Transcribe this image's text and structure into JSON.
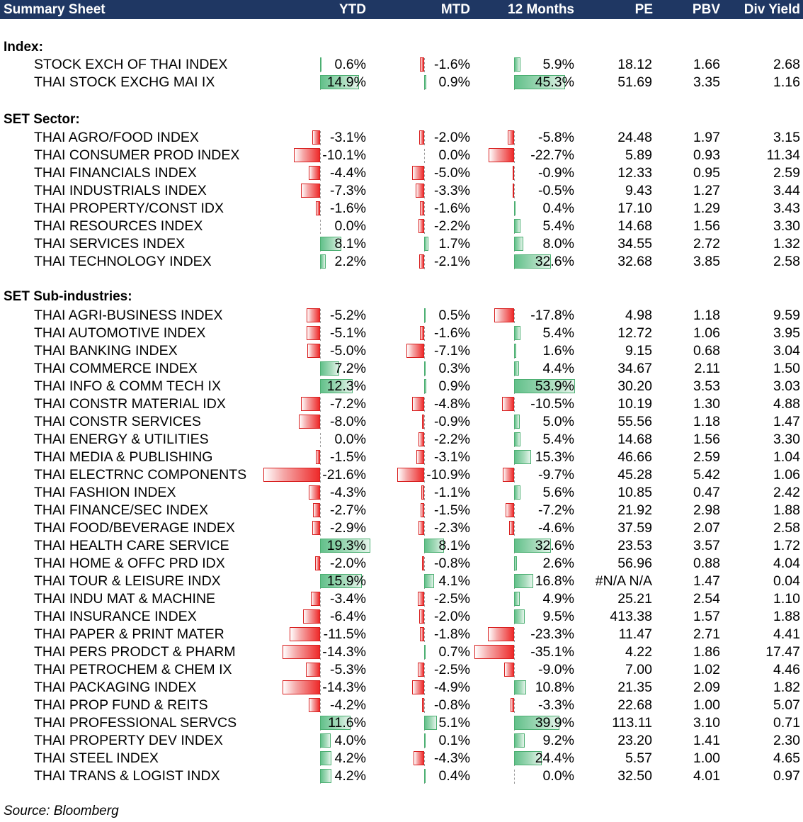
{
  "header": {
    "title": "Summary Sheet",
    "columns": {
      "ytd": "YTD",
      "mtd": "MTD",
      "m12": "12 Months",
      "pe": "PE",
      "pbv": "PBV",
      "dy": "Div Yield"
    }
  },
  "sections": [
    {
      "label": "Index:",
      "rows": [
        {
          "name": "STOCK EXCH OF THAI INDEX",
          "ytd": 0.6,
          "mtd": -1.6,
          "m12": 5.9,
          "pe": "18.12",
          "pbv": "1.66",
          "dy": "2.68"
        },
        {
          "name": "THAI STOCK EXCHG MAI IX",
          "ytd": 14.9,
          "mtd": 0.9,
          "m12": 45.3,
          "pe": "51.69",
          "pbv": "3.35",
          "dy": "1.16"
        }
      ]
    },
    {
      "label": "SET Sector:",
      "rows": [
        {
          "name": "THAI AGRO/FOOD INDEX",
          "ytd": -3.1,
          "mtd": -2.0,
          "m12": -5.8,
          "pe": "24.48",
          "pbv": "1.97",
          "dy": "3.15"
        },
        {
          "name": "THAI CONSUMER PROD INDEX",
          "ytd": -10.1,
          "mtd": 0.0,
          "m12": -22.7,
          "pe": "5.89",
          "pbv": "0.93",
          "dy": "11.34"
        },
        {
          "name": "THAI FINANCIALS INDEX",
          "ytd": -4.4,
          "mtd": -5.0,
          "m12": -0.9,
          "pe": "12.33",
          "pbv": "0.95",
          "dy": "2.59"
        },
        {
          "name": "THAI INDUSTRIALS INDEX",
          "ytd": -7.3,
          "mtd": -3.3,
          "m12": -0.5,
          "pe": "9.43",
          "pbv": "1.27",
          "dy": "3.44"
        },
        {
          "name": "THAI PROPERTY/CONST IDX",
          "ytd": -1.6,
          "mtd": -1.6,
          "m12": 0.4,
          "pe": "17.10",
          "pbv": "1.29",
          "dy": "3.43"
        },
        {
          "name": "THAI RESOURCES INDEX",
          "ytd": 0.0,
          "mtd": -2.2,
          "m12": 5.4,
          "pe": "14.68",
          "pbv": "1.56",
          "dy": "3.30"
        },
        {
          "name": "THAI SERVICES INDEX",
          "ytd": 8.1,
          "mtd": 1.7,
          "m12": 8.0,
          "pe": "34.55",
          "pbv": "2.72",
          "dy": "1.32"
        },
        {
          "name": "THAI TECHNOLOGY INDEX",
          "ytd": 2.2,
          "mtd": -2.1,
          "m12": 32.6,
          "pe": "32.68",
          "pbv": "3.85",
          "dy": "2.58"
        }
      ]
    },
    {
      "label": "SET Sub-industries:",
      "rows": [
        {
          "name": "THAI AGRI-BUSINESS INDEX",
          "ytd": -5.2,
          "mtd": 0.5,
          "m12": -17.8,
          "pe": "4.98",
          "pbv": "1.18",
          "dy": "9.59"
        },
        {
          "name": "THAI AUTOMOTIVE INDEX",
          "ytd": -5.1,
          "mtd": -1.6,
          "m12": 5.4,
          "pe": "12.72",
          "pbv": "1.06",
          "dy": "3.95"
        },
        {
          "name": "THAI BANKING INDEX",
          "ytd": -5.0,
          "mtd": -7.1,
          "m12": 1.6,
          "pe": "9.15",
          "pbv": "0.68",
          "dy": "3.04"
        },
        {
          "name": "THAI COMMERCE INDEX",
          "ytd": 7.2,
          "mtd": 0.3,
          "m12": 4.4,
          "pe": "34.67",
          "pbv": "2.11",
          "dy": "1.50"
        },
        {
          "name": "THAI INFO & COMM TECH IX",
          "ytd": 12.3,
          "mtd": 0.9,
          "m12": 53.9,
          "pe": "30.20",
          "pbv": "3.53",
          "dy": "3.03"
        },
        {
          "name": "THAI CONSTR MATERIAL IDX",
          "ytd": -7.2,
          "mtd": -4.8,
          "m12": -10.5,
          "pe": "10.19",
          "pbv": "1.30",
          "dy": "4.88"
        },
        {
          "name": "THAI CONSTR SERVICES",
          "ytd": -8.0,
          "mtd": -0.9,
          "m12": 5.0,
          "pe": "55.56",
          "pbv": "1.18",
          "dy": "1.47"
        },
        {
          "name": "THAI ENERGY & UTILITIES",
          "ytd": 0.0,
          "mtd": -2.2,
          "m12": 5.4,
          "pe": "14.68",
          "pbv": "1.56",
          "dy": "3.30"
        },
        {
          "name": "THAI MEDIA & PUBLISHING",
          "ytd": -1.5,
          "mtd": -3.1,
          "m12": 15.3,
          "pe": "46.66",
          "pbv": "2.59",
          "dy": "1.04"
        },
        {
          "name": "THAI ELECTRNC COMPONENTS",
          "ytd": -21.6,
          "mtd": -10.9,
          "m12": -9.7,
          "pe": "45.28",
          "pbv": "5.42",
          "dy": "1.06"
        },
        {
          "name": "THAI FASHION INDEX",
          "ytd": -4.3,
          "mtd": -1.1,
          "m12": 5.6,
          "pe": "10.85",
          "pbv": "0.47",
          "dy": "2.42"
        },
        {
          "name": "THAI FINANCE/SEC INDEX",
          "ytd": -2.7,
          "mtd": -1.5,
          "m12": -7.2,
          "pe": "21.92",
          "pbv": "2.98",
          "dy": "1.88"
        },
        {
          "name": "THAI FOOD/BEVERAGE INDEX",
          "ytd": -2.9,
          "mtd": -2.3,
          "m12": -4.6,
          "pe": "37.59",
          "pbv": "2.07",
          "dy": "2.58"
        },
        {
          "name": "THAI HEALTH CARE SERVICE",
          "ytd": 19.3,
          "mtd": 8.1,
          "m12": 32.6,
          "pe": "23.53",
          "pbv": "3.57",
          "dy": "1.72"
        },
        {
          "name": "THAI HOME & OFFC PRD IDX",
          "ytd": -2.0,
          "mtd": -0.8,
          "m12": 2.6,
          "pe": "56.96",
          "pbv": "0.88",
          "dy": "4.04"
        },
        {
          "name": "THAI TOUR & LEISURE INDX",
          "ytd": 15.9,
          "mtd": 4.1,
          "m12": 16.8,
          "pe": "#N/A N/A",
          "pbv": "1.47",
          "dy": "0.04"
        },
        {
          "name": "THAI INDU MAT & MACHINE",
          "ytd": -3.4,
          "mtd": -2.5,
          "m12": 4.9,
          "pe": "25.21",
          "pbv": "2.54",
          "dy": "1.10"
        },
        {
          "name": "THAI INSURANCE INDEX",
          "ytd": -6.4,
          "mtd": -2.0,
          "m12": 9.5,
          "pe": "413.38",
          "pbv": "1.57",
          "dy": "1.88"
        },
        {
          "name": "THAI PAPER & PRINT MATER",
          "ytd": -11.5,
          "mtd": -1.8,
          "m12": -23.3,
          "pe": "11.47",
          "pbv": "2.71",
          "dy": "4.41"
        },
        {
          "name": "THAI PERS PRODCT & PHARM",
          "ytd": -14.3,
          "mtd": 0.7,
          "m12": -35.1,
          "pe": "4.22",
          "pbv": "1.86",
          "dy": "17.47"
        },
        {
          "name": "THAI PETROCHEM & CHEM IX",
          "ytd": -5.3,
          "mtd": -2.5,
          "m12": -9.0,
          "pe": "7.00",
          "pbv": "1.02",
          "dy": "4.46"
        },
        {
          "name": "THAI PACKAGING INDEX",
          "ytd": -14.3,
          "mtd": -4.9,
          "m12": 10.8,
          "pe": "21.35",
          "pbv": "2.09",
          "dy": "1.82"
        },
        {
          "name": "THAI PROP FUND & REITS",
          "ytd": -4.2,
          "mtd": -0.8,
          "m12": -3.3,
          "pe": "22.68",
          "pbv": "1.00",
          "dy": "5.07"
        },
        {
          "name": "THAI PROFESSIONAL SERVCS",
          "ytd": 11.6,
          "mtd": 5.1,
          "m12": 39.9,
          "pe": "113.11",
          "pbv": "3.10",
          "dy": "0.71"
        },
        {
          "name": "THAI PROPERTY DEV INDEX",
          "ytd": 4.0,
          "mtd": 0.1,
          "m12": 9.2,
          "pe": "23.20",
          "pbv": "1.41",
          "dy": "2.30"
        },
        {
          "name": "THAI STEEL INDEX",
          "ytd": 4.2,
          "mtd": -4.3,
          "m12": 24.4,
          "pe": "5.57",
          "pbv": "1.00",
          "dy": "4.65"
        },
        {
          "name": "THAI TRANS & LOGIST INDX",
          "ytd": 4.2,
          "mtd": 0.4,
          "m12": 0.0,
          "pe": "32.50",
          "pbv": "4.01",
          "dy": "0.97"
        }
      ]
    }
  ],
  "source": "Source: Bloomberg",
  "colors": {
    "header_bg": "#1f3763",
    "negative": "#ee2a2a",
    "positive": "#62c08a"
  }
}
